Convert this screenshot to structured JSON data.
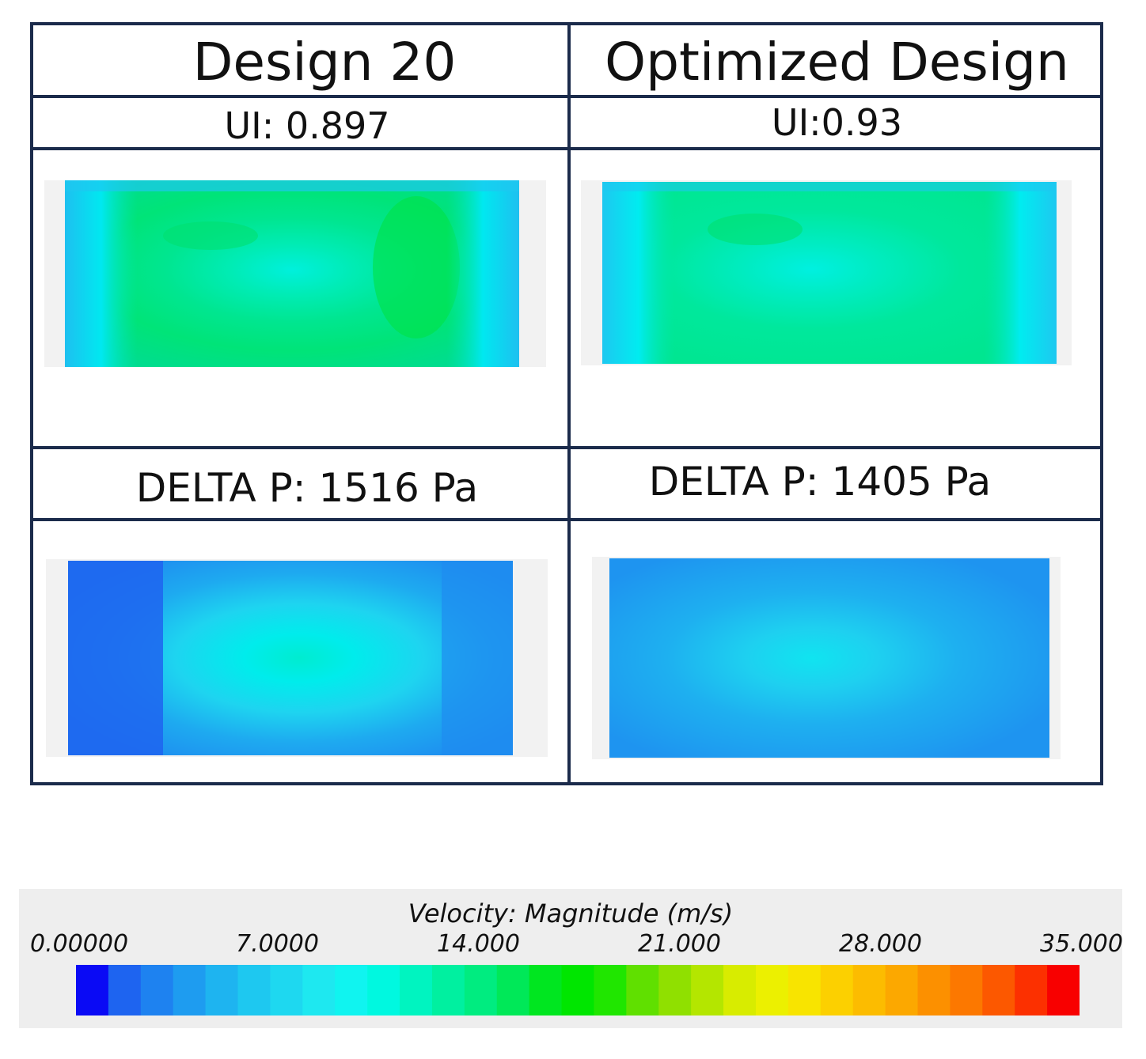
{
  "columns": [
    {
      "title": "Design 20",
      "ui_label": "UI: 0.897",
      "delta_p_label": "DELTA P: 1516 Pa"
    },
    {
      "title": "Optimized Design",
      "ui_label": "UI:0.93",
      "delta_p_label": "DELTA P: 1405 Pa"
    }
  ],
  "legend": {
    "title": "Velocity: Magnitude (m/s)",
    "ticks": [
      "0.00000",
      "7.0000",
      "14.000",
      "21.000",
      "28.000",
      "35.000"
    ],
    "colors": [
      "#0a0af5",
      "#1e64f0",
      "#1e82f0",
      "#1e9cf0",
      "#1eb4f0",
      "#1ec8f0",
      "#1ed8f0",
      "#1ee8f0",
      "#10f4f0",
      "#00f8e0",
      "#00f4c0",
      "#00f0a0",
      "#00ec80",
      "#00e858",
      "#00e620",
      "#00e600",
      "#20e600",
      "#60e000",
      "#90e000",
      "#b4e600",
      "#d8ec00",
      "#ecf000",
      "#f8e400",
      "#fcd000",
      "#fcbc00",
      "#fca800",
      "#fc9000",
      "#fc7800",
      "#fc5800",
      "#fc3000",
      "#f80000"
    ]
  }
}
